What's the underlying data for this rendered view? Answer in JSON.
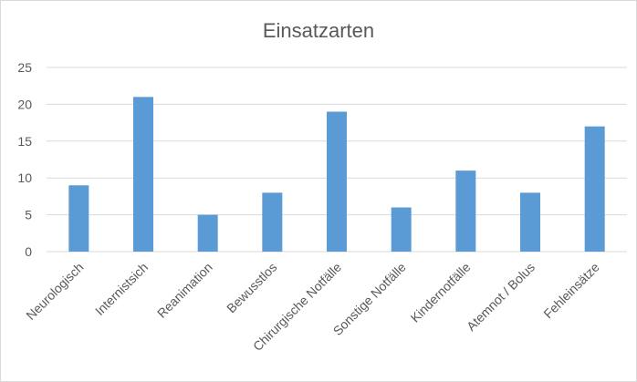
{
  "chart_data": {
    "type": "bar",
    "title": "Einsatzarten",
    "xlabel": "",
    "ylabel": "",
    "categories": [
      "Neurologisch",
      "Internistsich",
      "Reanimation",
      "Bewusstlos",
      "Chirurgische Notfälle",
      "Sonstige Notfälle",
      "Kindernotfälle",
      "Atemnot / Bolus",
      "Fehleinsätze"
    ],
    "values": [
      9,
      21,
      5,
      8,
      19,
      6,
      11,
      8,
      17
    ],
    "ylim": [
      0,
      25
    ],
    "yticks": [
      0,
      5,
      10,
      15,
      20,
      25
    ],
    "grid": true,
    "legend": "none",
    "colors": {
      "bar": "#5b9bd5",
      "grid": "#d9d9d9",
      "text": "#595959"
    }
  }
}
